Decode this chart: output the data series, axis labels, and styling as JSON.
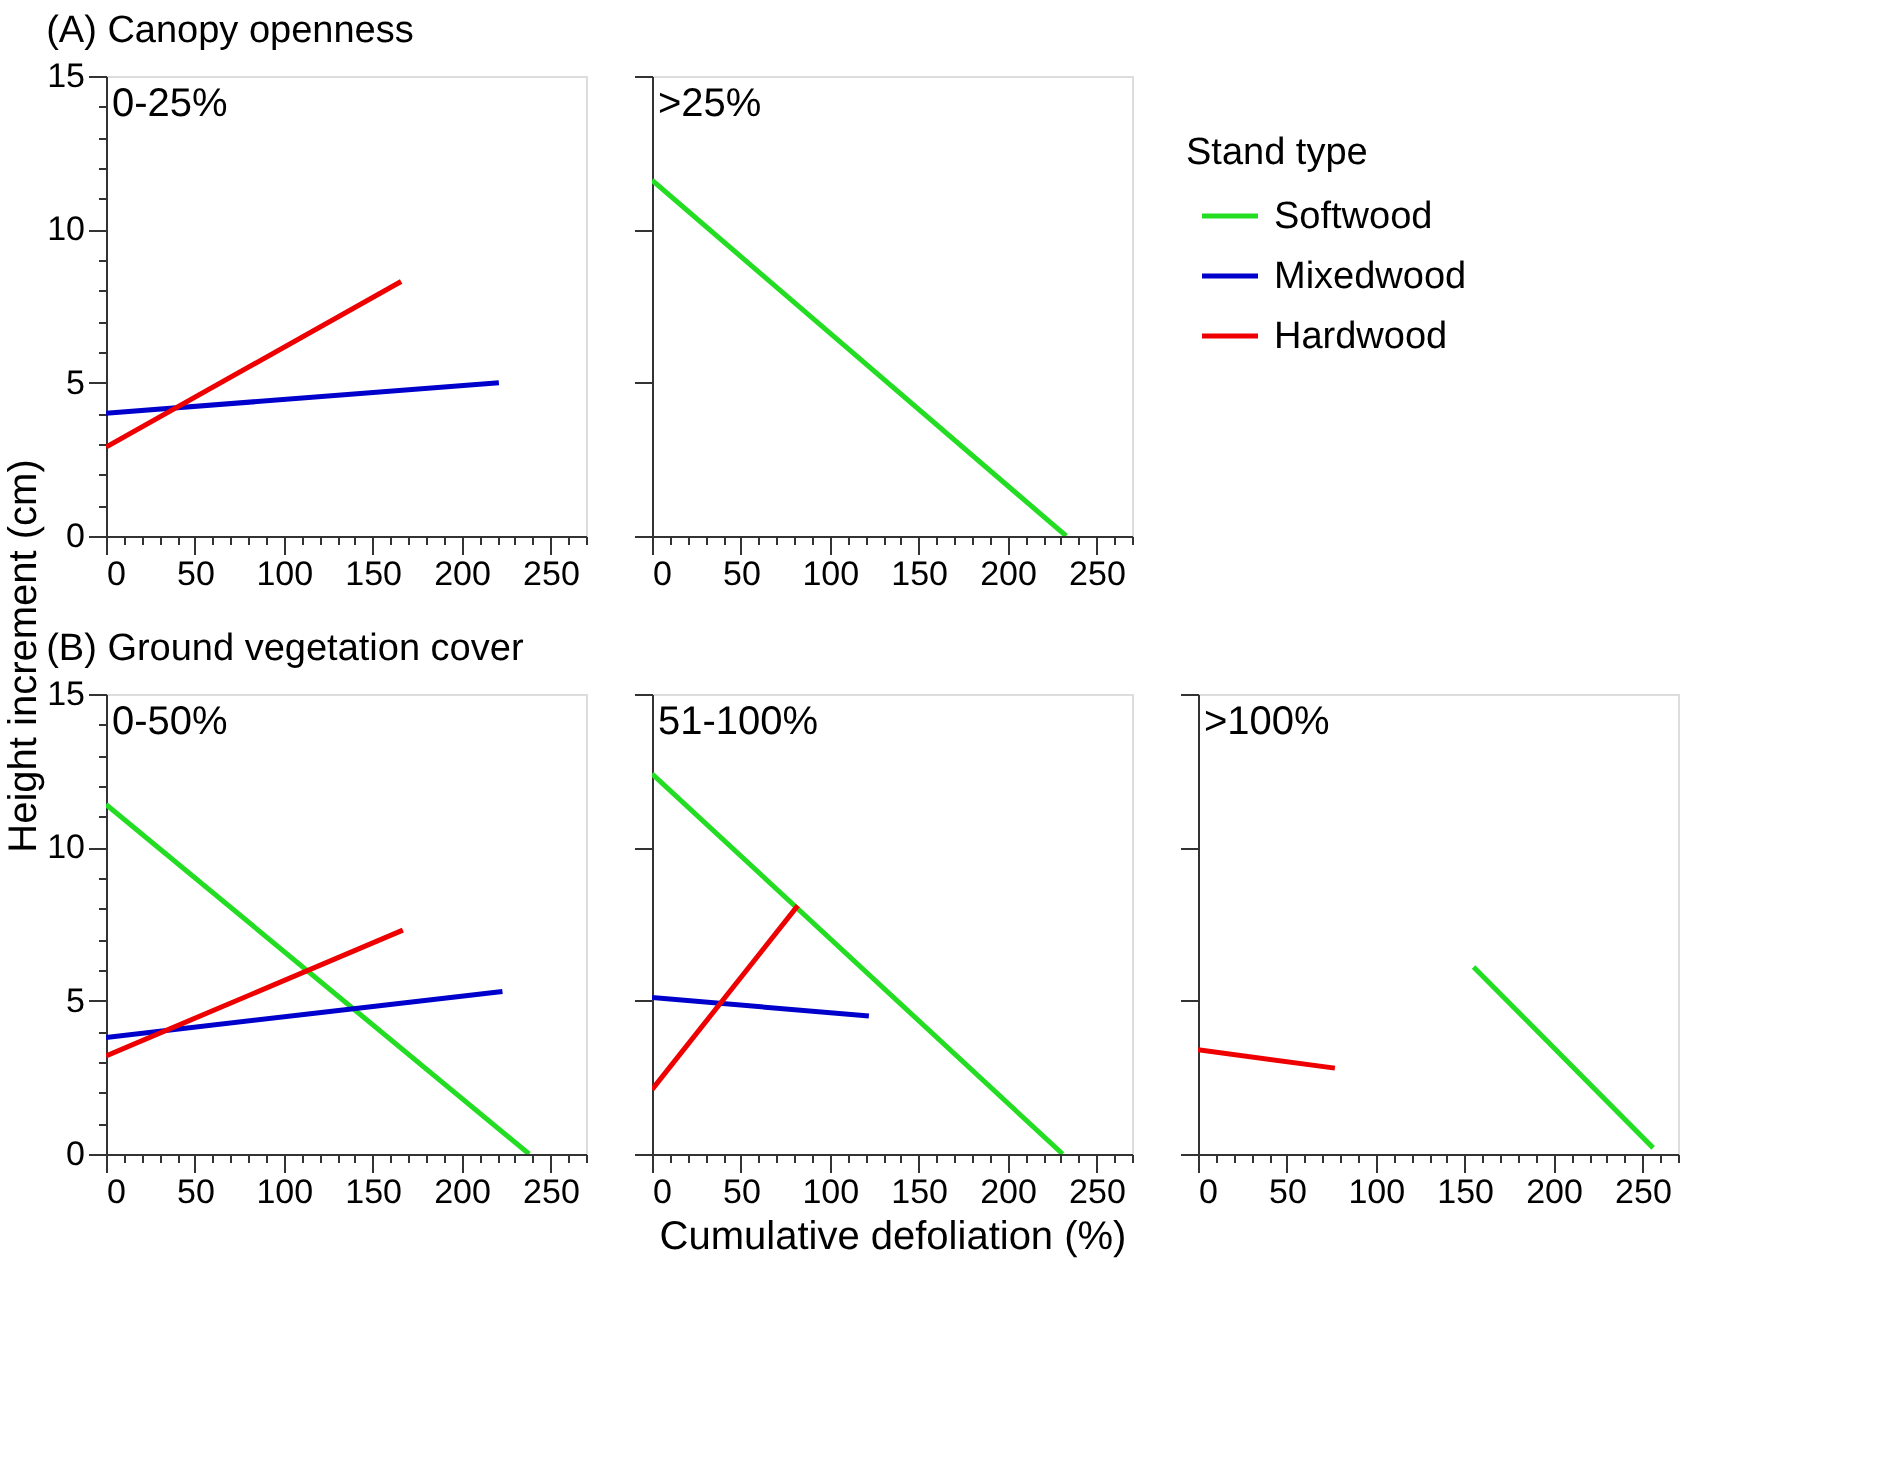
{
  "chart_data": [
    {
      "type": "line",
      "title": "(A) Canopy openness",
      "ylabel": "Height increment (cm)",
      "annotations": [
        "0-25%"
      ],
      "xlim": [
        0,
        270
      ],
      "ylim": [
        0,
        15
      ],
      "xticks": [
        0,
        {
          "value": 10,
          "label": null
        },
        {
          "value": 20,
          "label": null
        },
        {
          "value": 30,
          "label": null
        },
        {
          "value": 40,
          "label": null
        },
        50,
        {
          "value": 60,
          "label": null
        },
        {
          "value": 70,
          "label": null
        },
        {
          "value": 80,
          "label": null
        },
        {
          "value": 90,
          "label": null
        },
        100,
        {
          "value": 110,
          "label": null
        },
        {
          "value": 120,
          "label": null
        },
        {
          "value": 130,
          "label": null
        },
        {
          "value": 140,
          "label": null
        },
        150,
        {
          "value": 160,
          "label": null
        },
        {
          "value": 170,
          "label": null
        },
        {
          "value": 180,
          "label": null
        },
        {
          "value": 190,
          "label": null
        },
        200,
        {
          "value": 210,
          "label": null
        },
        {
          "value": 220,
          "label": null
        },
        {
          "value": 230,
          "label": null
        },
        {
          "value": 240,
          "label": null
        },
        250,
        {
          "value": 260,
          "label": null
        },
        {
          "value": 270,
          "label": null
        }
      ],
      "yticks": [
        0,
        {
          "value": 1,
          "label": null
        },
        {
          "value": 2,
          "label": null
        },
        {
          "value": 3,
          "label": null
        },
        {
          "value": 4,
          "label": null
        },
        5,
        {
          "value": 6,
          "label": null
        },
        {
          "value": 7,
          "label": null
        },
        {
          "value": 8,
          "label": null
        },
        {
          "value": 9,
          "label": null
        },
        10,
        {
          "value": 11,
          "label": null
        },
        {
          "value": 12,
          "label": null
        },
        {
          "value": 13,
          "label": null
        },
        {
          "value": 14,
          "label": null
        },
        15
      ],
      "series": [
        {
          "color": "#0000cc",
          "x": [
            0,
            221
          ],
          "values": [
            4.0,
            5.0
          ]
        },
        {
          "color": "#ee0000",
          "x": [
            0,
            166
          ],
          "values": [
            2.9,
            8.3
          ]
        }
      ]
    },
    {
      "type": "line",
      "annotations": [
        ">25%"
      ],
      "xlim": [
        0,
        270
      ],
      "ylim": [
        0,
        15
      ],
      "tick_labels": "x",
      "yticks": [
        0,
        5,
        10,
        15
      ],
      "xticks": [
        0,
        {
          "value": 10,
          "label": null
        },
        {
          "value": 20,
          "label": null
        },
        {
          "value": 30,
          "label": null
        },
        {
          "value": 40,
          "label": null
        },
        50,
        {
          "value": 60,
          "label": null
        },
        {
          "value": 70,
          "label": null
        },
        {
          "value": 80,
          "label": null
        },
        {
          "value": 90,
          "label": null
        },
        100,
        {
          "value": 110,
          "label": null
        },
        {
          "value": 120,
          "label": null
        },
        {
          "value": 130,
          "label": null
        },
        {
          "value": 140,
          "label": null
        },
        150,
        {
          "value": 160,
          "label": null
        },
        {
          "value": 170,
          "label": null
        },
        {
          "value": 180,
          "label": null
        },
        {
          "value": 190,
          "label": null
        },
        200,
        {
          "value": 210,
          "label": null
        },
        {
          "value": 220,
          "label": null
        },
        {
          "value": 230,
          "label": null
        },
        {
          "value": 240,
          "label": null
        },
        250,
        {
          "value": 260,
          "label": null
        },
        {
          "value": 270,
          "label": null
        }
      ],
      "series": [
        {
          "color": "#22dd22",
          "x": [
            0,
            233
          ],
          "values": [
            11.6,
            0
          ]
        }
      ]
    },
    {
      "type": "line",
      "title": "(B) Ground vegetation cover",
      "annotations": [
        "0-50%"
      ],
      "xlim": [
        0,
        270
      ],
      "ylim": [
        0,
        15
      ],
      "legend": "right",
      "legend_title": "Stand type",
      "xticks": [
        0,
        {
          "value": 10,
          "label": null
        },
        {
          "value": 20,
          "label": null
        },
        {
          "value": 30,
          "label": null
        },
        {
          "value": 40,
          "label": null
        },
        50,
        {
          "value": 60,
          "label": null
        },
        {
          "value": 70,
          "label": null
        },
        {
          "value": 80,
          "label": null
        },
        {
          "value": 90,
          "label": null
        },
        100,
        {
          "value": 110,
          "label": null
        },
        {
          "value": 120,
          "label": null
        },
        {
          "value": 130,
          "label": null
        },
        {
          "value": 140,
          "label": null
        },
        150,
        {
          "value": 160,
          "label": null
        },
        {
          "value": 170,
          "label": null
        },
        {
          "value": 180,
          "label": null
        },
        {
          "value": 190,
          "label": null
        },
        200,
        {
          "value": 210,
          "label": null
        },
        {
          "value": 220,
          "label": null
        },
        {
          "value": 230,
          "label": null
        },
        {
          "value": 240,
          "label": null
        },
        250,
        {
          "value": 260,
          "label": null
        },
        {
          "value": 270,
          "label": null
        }
      ],
      "yticks": [
        0,
        {
          "value": 1,
          "label": null
        },
        {
          "value": 2,
          "label": null
        },
        {
          "value": 3,
          "label": null
        },
        {
          "value": 4,
          "label": null
        },
        5,
        {
          "value": 6,
          "label": null
        },
        {
          "value": 7,
          "label": null
        },
        {
          "value": 8,
          "label": null
        },
        {
          "value": 9,
          "label": null
        },
        10,
        {
          "value": 11,
          "label": null
        },
        {
          "value": 12,
          "label": null
        },
        {
          "value": 13,
          "label": null
        },
        {
          "value": 14,
          "label": null
        },
        15
      ],
      "series": [
        {
          "name": "Softwood",
          "color": "#22dd22",
          "x": [
            0,
            238
          ],
          "values": [
            11.4,
            0
          ]
        },
        {
          "name": "Mixedwood",
          "color": "#0000cc",
          "x": [
            0,
            223
          ],
          "values": [
            3.8,
            5.3
          ]
        },
        {
          "name": "Hardwood",
          "color": "#ee0000",
          "x": [
            0,
            167
          ],
          "values": [
            3.2,
            7.3
          ]
        }
      ]
    },
    {
      "type": "line",
      "annotations": [
        "51-100%"
      ],
      "xlabel": "Cumulative defoliation (%)",
      "xlim": [
        0,
        270
      ],
      "ylim": [
        0,
        15
      ],
      "tick_labels": "x",
      "yticks": [
        0,
        5,
        10,
        15
      ],
      "xticks": [
        0,
        {
          "value": 10,
          "label": null
        },
        {
          "value": 20,
          "label": null
        },
        {
          "value": 30,
          "label": null
        },
        {
          "value": 40,
          "label": null
        },
        50,
        {
          "value": 60,
          "label": null
        },
        {
          "value": 70,
          "label": null
        },
        {
          "value": 80,
          "label": null
        },
        {
          "value": 90,
          "label": null
        },
        100,
        {
          "value": 110,
          "label": null
        },
        {
          "value": 120,
          "label": null
        },
        {
          "value": 130,
          "label": null
        },
        {
          "value": 140,
          "label": null
        },
        150,
        {
          "value": 160,
          "label": null
        },
        {
          "value": 170,
          "label": null
        },
        {
          "value": 180,
          "label": null
        },
        {
          "value": 190,
          "label": null
        },
        200,
        {
          "value": 210,
          "label": null
        },
        {
          "value": 220,
          "label": null
        },
        {
          "value": 230,
          "label": null
        },
        {
          "value": 240,
          "label": null
        },
        250,
        {
          "value": 260,
          "label": null
        },
        {
          "value": 270,
          "label": null
        }
      ],
      "series": [
        {
          "color": "#22dd22",
          "x": [
            0,
            231
          ],
          "values": [
            12.4,
            0
          ]
        },
        {
          "color": "#0000cc",
          "x": [
            0,
            122
          ],
          "values": [
            5.1,
            4.5
          ]
        },
        {
          "color": "#ee0000",
          "x": [
            0,
            82
          ],
          "values": [
            2.1,
            8.1
          ]
        }
      ]
    },
    {
      "type": "line",
      "annotations": [
        ">100%"
      ],
      "xlim": [
        0,
        270
      ],
      "ylim": [
        0,
        15
      ],
      "tick_labels": "x",
      "yticks": [
        0,
        5,
        10,
        15
      ],
      "xticks": [
        0,
        {
          "value": 10,
          "label": null
        },
        {
          "value": 20,
          "label": null
        },
        {
          "value": 30,
          "label": null
        },
        {
          "value": 40,
          "label": null
        },
        50,
        {
          "value": 60,
          "label": null
        },
        {
          "value": 70,
          "label": null
        },
        {
          "value": 80,
          "label": null
        },
        {
          "value": 90,
          "label": null
        },
        100,
        {
          "value": 110,
          "label": null
        },
        {
          "value": 120,
          "label": null
        },
        {
          "value": 130,
          "label": null
        },
        {
          "value": 140,
          "label": null
        },
        150,
        {
          "value": 160,
          "label": null
        },
        {
          "value": 170,
          "label": null
        },
        {
          "value": 180,
          "label": null
        },
        {
          "value": 190,
          "label": null
        },
        200,
        {
          "value": 210,
          "label": null
        },
        {
          "value": 220,
          "label": null
        },
        {
          "value": 230,
          "label": null
        },
        {
          "value": 240,
          "label": null
        },
        250,
        {
          "value": 260,
          "label": null
        },
        {
          "value": 270,
          "label": null
        }
      ],
      "series": [
        {
          "color": "#22dd22",
          "x": [
            155,
            256
          ],
          "values": [
            6.1,
            0.2
          ]
        },
        {
          "color": "#ee0000",
          "x": [
            0,
            77
          ],
          "values": [
            3.4,
            2.8
          ]
        }
      ]
    }
  ]
}
